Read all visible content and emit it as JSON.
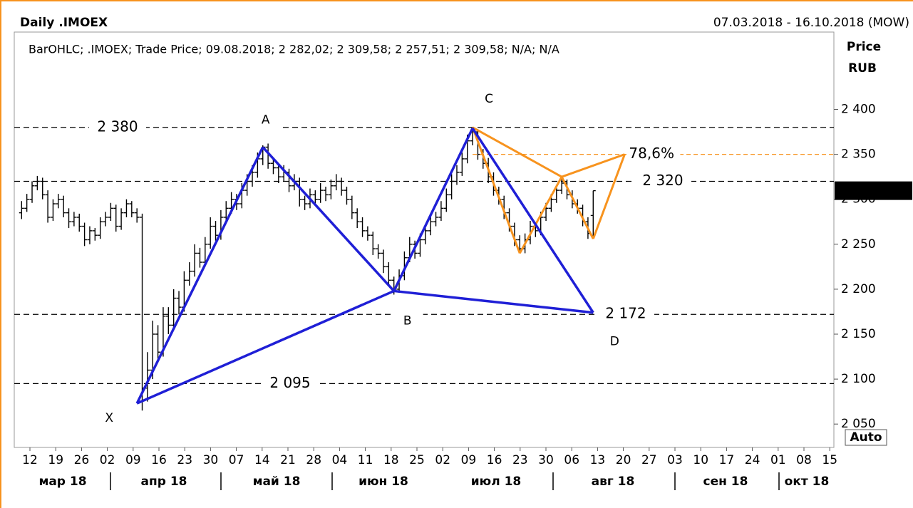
{
  "chart_data": {
    "type": "ohlc",
    "title": "Daily .IMOEX",
    "date_range": "07.03.2018 - 16.10.2018 (MOW)",
    "legend": "BarOHLC; .IMOEX; Trade Price; 09.08.2018; 2 282,02; 2 309,58; 2 257,51; 2 309,58; N/A; N/A",
    "y_axis_label": "Price",
    "y_axis_unit": "RUB",
    "auto_button": "Auto",
    "color": "#000000",
    "xlim": [
      -1.4,
      154.9
    ],
    "ylim": [
      2024,
      2486
    ],
    "yticks": [
      {
        "value": 2050,
        "label": "2 050"
      },
      {
        "value": 2100,
        "label": "2 100"
      },
      {
        "value": 2150,
        "label": "2 150"
      },
      {
        "value": 2200,
        "label": "2 200"
      },
      {
        "value": 2250,
        "label": "2 250"
      },
      {
        "value": 2300,
        "label": "2 300"
      },
      {
        "value": 2350,
        "label": "2 350"
      },
      {
        "value": 2400,
        "label": "2 400"
      }
    ],
    "last_price": {
      "value": 2309.58,
      "label": "2 309,58"
    },
    "levels": [
      {
        "value": 2380,
        "label": "2 380"
      },
      {
        "value": 2320,
        "label": "2 320"
      },
      {
        "value": 2172,
        "label": "2 172"
      },
      {
        "value": 2095,
        "label": "2 095"
      }
    ],
    "pattern": {
      "color": "#1f1fd6",
      "labels": [
        "X",
        "A",
        "B",
        "C",
        "D"
      ],
      "x": [
        22,
        46,
        71,
        86,
        109
      ],
      "values": [
        2073,
        2358,
        2198,
        2379,
        2174
      ]
    },
    "harmonic": {
      "color": "#f7931e",
      "x": [
        86,
        95,
        103,
        109,
        115
      ],
      "values": [
        2380,
        2240,
        2325,
        2256,
        2350
      ]
    },
    "fib_level": {
      "name": "78,6%",
      "value": 2350,
      "color": "#ff0000"
    },
    "week_labels": [
      "12",
      "19",
      "26",
      "02",
      "09",
      "16",
      "23",
      "30",
      "07",
      "14",
      "21",
      "28",
      "04",
      "11",
      "18",
      "25",
      "02",
      "09",
      "16",
      "23",
      "30",
      "06",
      "13",
      "20",
      "27",
      "03",
      "10",
      "17",
      "24",
      "01",
      "08",
      "15"
    ],
    "month_labels": [
      "мар 18",
      "апр 18",
      "май 18",
      "июн 18",
      "июл 18",
      "авг 18",
      "сен 18",
      "окт 18"
    ],
    "ohlc": [
      [
        2285,
        2298,
        2278,
        2290
      ],
      [
        2290,
        2306,
        2286,
        2300
      ],
      [
        2300,
        2320,
        2296,
        2315
      ],
      [
        2315,
        2326,
        2310,
        2320
      ],
      [
        2320,
        2324,
        2300,
        2305
      ],
      [
        2305,
        2310,
        2274,
        2280
      ],
      [
        2280,
        2300,
        2276,
        2295
      ],
      [
        2295,
        2306,
        2290,
        2300
      ],
      [
        2300,
        2304,
        2280,
        2285
      ],
      [
        2285,
        2290,
        2268,
        2275
      ],
      [
        2275,
        2286,
        2270,
        2280
      ],
      [
        2280,
        2284,
        2264,
        2270
      ],
      [
        2270,
        2274,
        2248,
        2255
      ],
      [
        2255,
        2270,
        2250,
        2265
      ],
      [
        2265,
        2268,
        2254,
        2260
      ],
      [
        2260,
        2280,
        2256,
        2275
      ],
      [
        2275,
        2286,
        2270,
        2280
      ],
      [
        2280,
        2296,
        2276,
        2290
      ],
      [
        2290,
        2294,
        2264,
        2270
      ],
      [
        2270,
        2290,
        2266,
        2285
      ],
      [
        2285,
        2300,
        2280,
        2295
      ],
      [
        2295,
        2298,
        2280,
        2285
      ],
      [
        2285,
        2290,
        2274,
        2280
      ],
      [
        2280,
        2284,
        2065,
        2090
      ],
      [
        2090,
        2130,
        2075,
        2110
      ],
      [
        2110,
        2165,
        2100,
        2150
      ],
      [
        2150,
        2160,
        2120,
        2130
      ],
      [
        2130,
        2180,
        2125,
        2170
      ],
      [
        2170,
        2180,
        2150,
        2160
      ],
      [
        2160,
        2200,
        2155,
        2190
      ],
      [
        2190,
        2198,
        2172,
        2180
      ],
      [
        2180,
        2220,
        2175,
        2210
      ],
      [
        2210,
        2230,
        2204,
        2220
      ],
      [
        2220,
        2250,
        2214,
        2240
      ],
      [
        2240,
        2246,
        2224,
        2230
      ],
      [
        2230,
        2258,
        2225,
        2250
      ],
      [
        2250,
        2280,
        2245,
        2270
      ],
      [
        2270,
        2276,
        2254,
        2260
      ],
      [
        2260,
        2288,
        2255,
        2280
      ],
      [
        2280,
        2298,
        2274,
        2290
      ],
      [
        2290,
        2308,
        2284,
        2300
      ],
      [
        2300,
        2306,
        2288,
        2295
      ],
      [
        2295,
        2318,
        2290,
        2310
      ],
      [
        2310,
        2328,
        2304,
        2320
      ],
      [
        2320,
        2338,
        2314,
        2330
      ],
      [
        2330,
        2352,
        2324,
        2345
      ],
      [
        2345,
        2360,
        2338,
        2358
      ],
      [
        2358,
        2362,
        2334,
        2340
      ],
      [
        2340,
        2346,
        2328,
        2335
      ],
      [
        2335,
        2340,
        2318,
        2325
      ],
      [
        2325,
        2338,
        2320,
        2330
      ],
      [
        2330,
        2334,
        2308,
        2315
      ],
      [
        2315,
        2328,
        2310,
        2320
      ],
      [
        2320,
        2324,
        2292,
        2300
      ],
      [
        2300,
        2304,
        2288,
        2295
      ],
      [
        2295,
        2312,
        2290,
        2305
      ],
      [
        2305,
        2310,
        2294,
        2300
      ],
      [
        2300,
        2318,
        2296,
        2310
      ],
      [
        2310,
        2314,
        2298,
        2305
      ],
      [
        2305,
        2322,
        2300,
        2315
      ],
      [
        2315,
        2328,
        2310,
        2320
      ],
      [
        2320,
        2324,
        2304,
        2310
      ],
      [
        2310,
        2314,
        2294,
        2300
      ],
      [
        2300,
        2304,
        2278,
        2285
      ],
      [
        2285,
        2290,
        2268,
        2275
      ],
      [
        2275,
        2280,
        2258,
        2265
      ],
      [
        2265,
        2270,
        2254,
        2260
      ],
      [
        2260,
        2264,
        2238,
        2245
      ],
      [
        2245,
        2250,
        2234,
        2240
      ],
      [
        2240,
        2244,
        2218,
        2225
      ],
      [
        2225,
        2230,
        2204,
        2210
      ],
      [
        2210,
        2214,
        2194,
        2200
      ],
      [
        2200,
        2222,
        2196,
        2215
      ],
      [
        2215,
        2242,
        2210,
        2235
      ],
      [
        2235,
        2258,
        2230,
        2250
      ],
      [
        2250,
        2254,
        2234,
        2240
      ],
      [
        2240,
        2262,
        2236,
        2255
      ],
      [
        2255,
        2272,
        2250,
        2265
      ],
      [
        2265,
        2282,
        2260,
        2275
      ],
      [
        2275,
        2286,
        2270,
        2280
      ],
      [
        2280,
        2298,
        2276,
        2290
      ],
      [
        2290,
        2312,
        2286,
        2305
      ],
      [
        2305,
        2328,
        2300,
        2320
      ],
      [
        2320,
        2338,
        2316,
        2330
      ],
      [
        2330,
        2352,
        2326,
        2345
      ],
      [
        2345,
        2372,
        2340,
        2365
      ],
      [
        2365,
        2380,
        2360,
        2375
      ],
      [
        2375,
        2378,
        2344,
        2350
      ],
      [
        2350,
        2356,
        2334,
        2340
      ],
      [
        2340,
        2346,
        2318,
        2325
      ],
      [
        2325,
        2330,
        2304,
        2310
      ],
      [
        2310,
        2314,
        2294,
        2300
      ],
      [
        2300,
        2304,
        2278,
        2285
      ],
      [
        2285,
        2290,
        2264,
        2270
      ],
      [
        2270,
        2274,
        2248,
        2255
      ],
      [
        2255,
        2260,
        2240,
        2245
      ],
      [
        2245,
        2262,
        2240,
        2255
      ],
      [
        2255,
        2276,
        2250,
        2270
      ],
      [
        2270,
        2274,
        2258,
        2265
      ],
      [
        2265,
        2286,
        2260,
        2280
      ],
      [
        2280,
        2296,
        2276,
        2290
      ],
      [
        2290,
        2306,
        2286,
        2300
      ],
      [
        2300,
        2316,
        2296,
        2310
      ],
      [
        2310,
        2322,
        2306,
        2318
      ],
      [
        2318,
        2322,
        2300,
        2305
      ],
      [
        2305,
        2310,
        2290,
        2295
      ],
      [
        2295,
        2300,
        2284,
        2290
      ],
      [
        2290,
        2294,
        2270,
        2275
      ],
      [
        2275,
        2280,
        2256,
        2262
      ],
      [
        2282.02,
        2309.58,
        2257.51,
        2309.58
      ]
    ]
  }
}
